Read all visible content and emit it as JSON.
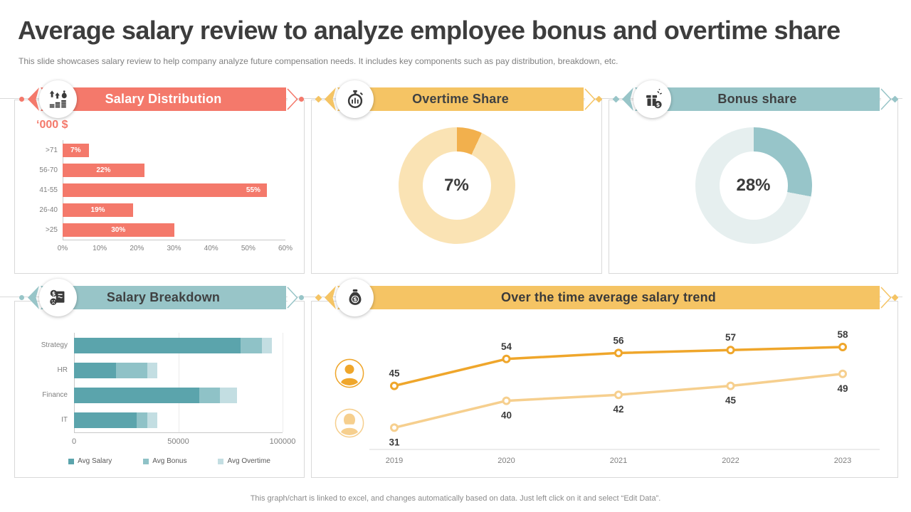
{
  "title": "Average salary review to analyze employee bonus and overtime share",
  "subtitle": "This slide showcases salary review to help company analyze future compensation needs. It includes key components such as pay distribution, breakdown, etc.",
  "footer": "This graph/chart is linked to excel, and changes automatically based on data. Just left click on it and select “Edit Data”.",
  "colors": {
    "salmon": "#f4796b",
    "yellow": "#f5c464",
    "teal": "#98c5c8",
    "dark_text": "#3b3b3b",
    "gray_text": "#7f7f7f",
    "border": "#d9d9d9"
  },
  "panels": [
    {
      "id": "salary_distribution",
      "title": "Salary Distribution",
      "banner_color": "#f4796b",
      "title_color": "#ffffff",
      "icon": "coin-stacks-icon"
    },
    {
      "id": "overtime_share",
      "title": "Overtime Share",
      "banner_color": "#f5c464",
      "title_color": "#3f4142",
      "icon": "stopwatch-icon"
    },
    {
      "id": "bonus_share",
      "title": "Bonus share",
      "banner_color": "#98c5c8",
      "title_color": "#3f4142",
      "icon": "gift-icon"
    },
    {
      "id": "salary_breakdown",
      "title": "Salary Breakdown",
      "banner_color": "#98c5c8",
      "title_color": "#3f4142",
      "icon": "document-dollar-icon"
    },
    {
      "id": "salary_trend",
      "title": "Over the time average salary trend",
      "banner_color": "#f5c464",
      "title_color": "#3a3a3a",
      "icon": "money-bag-icon"
    }
  ],
  "chart_data": [
    {
      "id": "salary_distribution",
      "type": "bar",
      "orientation": "horizontal",
      "title": "Salary Distribution",
      "unit_label": "‘000 $",
      "categories": [
        ">71",
        "56-70",
        "41-55",
        "26-40",
        ">25"
      ],
      "values": [
        7,
        22,
        55,
        19,
        30
      ],
      "value_labels": [
        "7%",
        "22%",
        "55%",
        "19%",
        "30%"
      ],
      "xlim": [
        0,
        60
      ],
      "x_ticks": [
        "0%",
        "10%",
        "20%",
        "30%",
        "40%",
        "50%",
        "60%"
      ],
      "bar_color": "#f4796b",
      "grid": false
    },
    {
      "id": "overtime_share",
      "type": "donut",
      "title": "Overtime Share",
      "value": 7,
      "remainder": 93,
      "center_label": "7%",
      "slice_color": "#f2b04d",
      "remainder_color": "#fae3b4"
    },
    {
      "id": "bonus_share",
      "type": "donut",
      "title": "Bonus share",
      "value": 28,
      "remainder": 72,
      "center_label": "28%",
      "slice_color": "#97c5c9",
      "remainder_color": "#e6efef"
    },
    {
      "id": "salary_breakdown",
      "type": "stacked-bar",
      "orientation": "horizontal",
      "title": "Salary Breakdown",
      "categories": [
        "Strategy",
        "HR",
        "Finance",
        "IT"
      ],
      "series": [
        {
          "name": "Avg Salary",
          "color": "#5ba4ac",
          "values": [
            80000,
            20000,
            60000,
            30000
          ]
        },
        {
          "name": "Avg Bonus",
          "color": "#8fc2c7",
          "values": [
            10000,
            15000,
            10000,
            5000
          ]
        },
        {
          "name": "Avg Overtime",
          "color": "#c3dee2",
          "values": [
            5000,
            5000,
            8000,
            5000
          ]
        }
      ],
      "xlim": [
        0,
        100000
      ],
      "x_ticks": [
        "0",
        "50000",
        "100000"
      ],
      "legend_position": "bottom",
      "grid": true
    },
    {
      "id": "salary_trend",
      "type": "line",
      "title": "Over the time average salary trend",
      "x": [
        "2019",
        "2020",
        "2021",
        "2022",
        "2023"
      ],
      "series": [
        {
          "name": "series-male",
          "icon": "male-person-icon",
          "color": "#efa62b",
          "values": [
            45,
            54,
            56,
            57,
            58
          ],
          "label_position": "above"
        },
        {
          "name": "series-female",
          "icon": "female-person-icon",
          "color": "#f6cf8e",
          "values": [
            31,
            40,
            42,
            45,
            49
          ],
          "label_position": "below"
        }
      ],
      "ylim": [
        25,
        65
      ],
      "grid": false,
      "legend_position": "left-icons"
    }
  ]
}
